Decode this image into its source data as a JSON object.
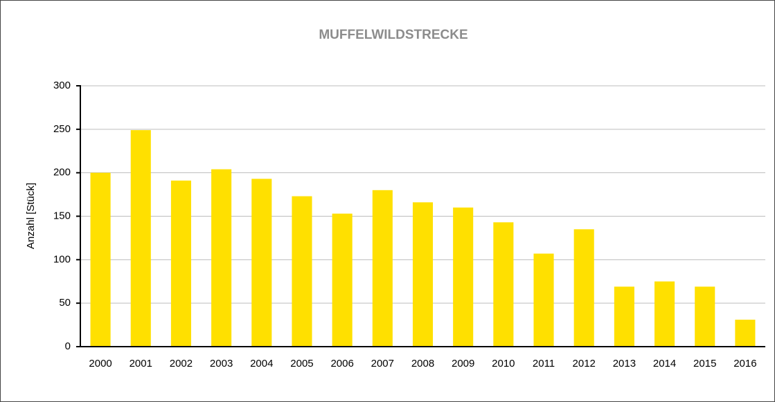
{
  "chart_data": {
    "type": "bar",
    "title": "MUFFELWILDSTRECKE",
    "y_label": "Anzahl [Stück]",
    "categories": [
      "2000",
      "2001",
      "2002",
      "2003",
      "2004",
      "2005",
      "2006",
      "2007",
      "2008",
      "2009",
      "2010",
      "2011",
      "2012",
      "2013",
      "2014",
      "2015",
      "2016"
    ],
    "values": [
      200,
      249,
      191,
      204,
      193,
      173,
      153,
      180,
      166,
      160,
      143,
      107,
      135,
      69,
      75,
      69,
      31
    ],
    "color": "#ffe000",
    "ylim": [
      0,
      300
    ],
    "yticks": [
      0,
      50,
      100,
      150,
      200,
      250,
      300
    ],
    "grid": true
  }
}
